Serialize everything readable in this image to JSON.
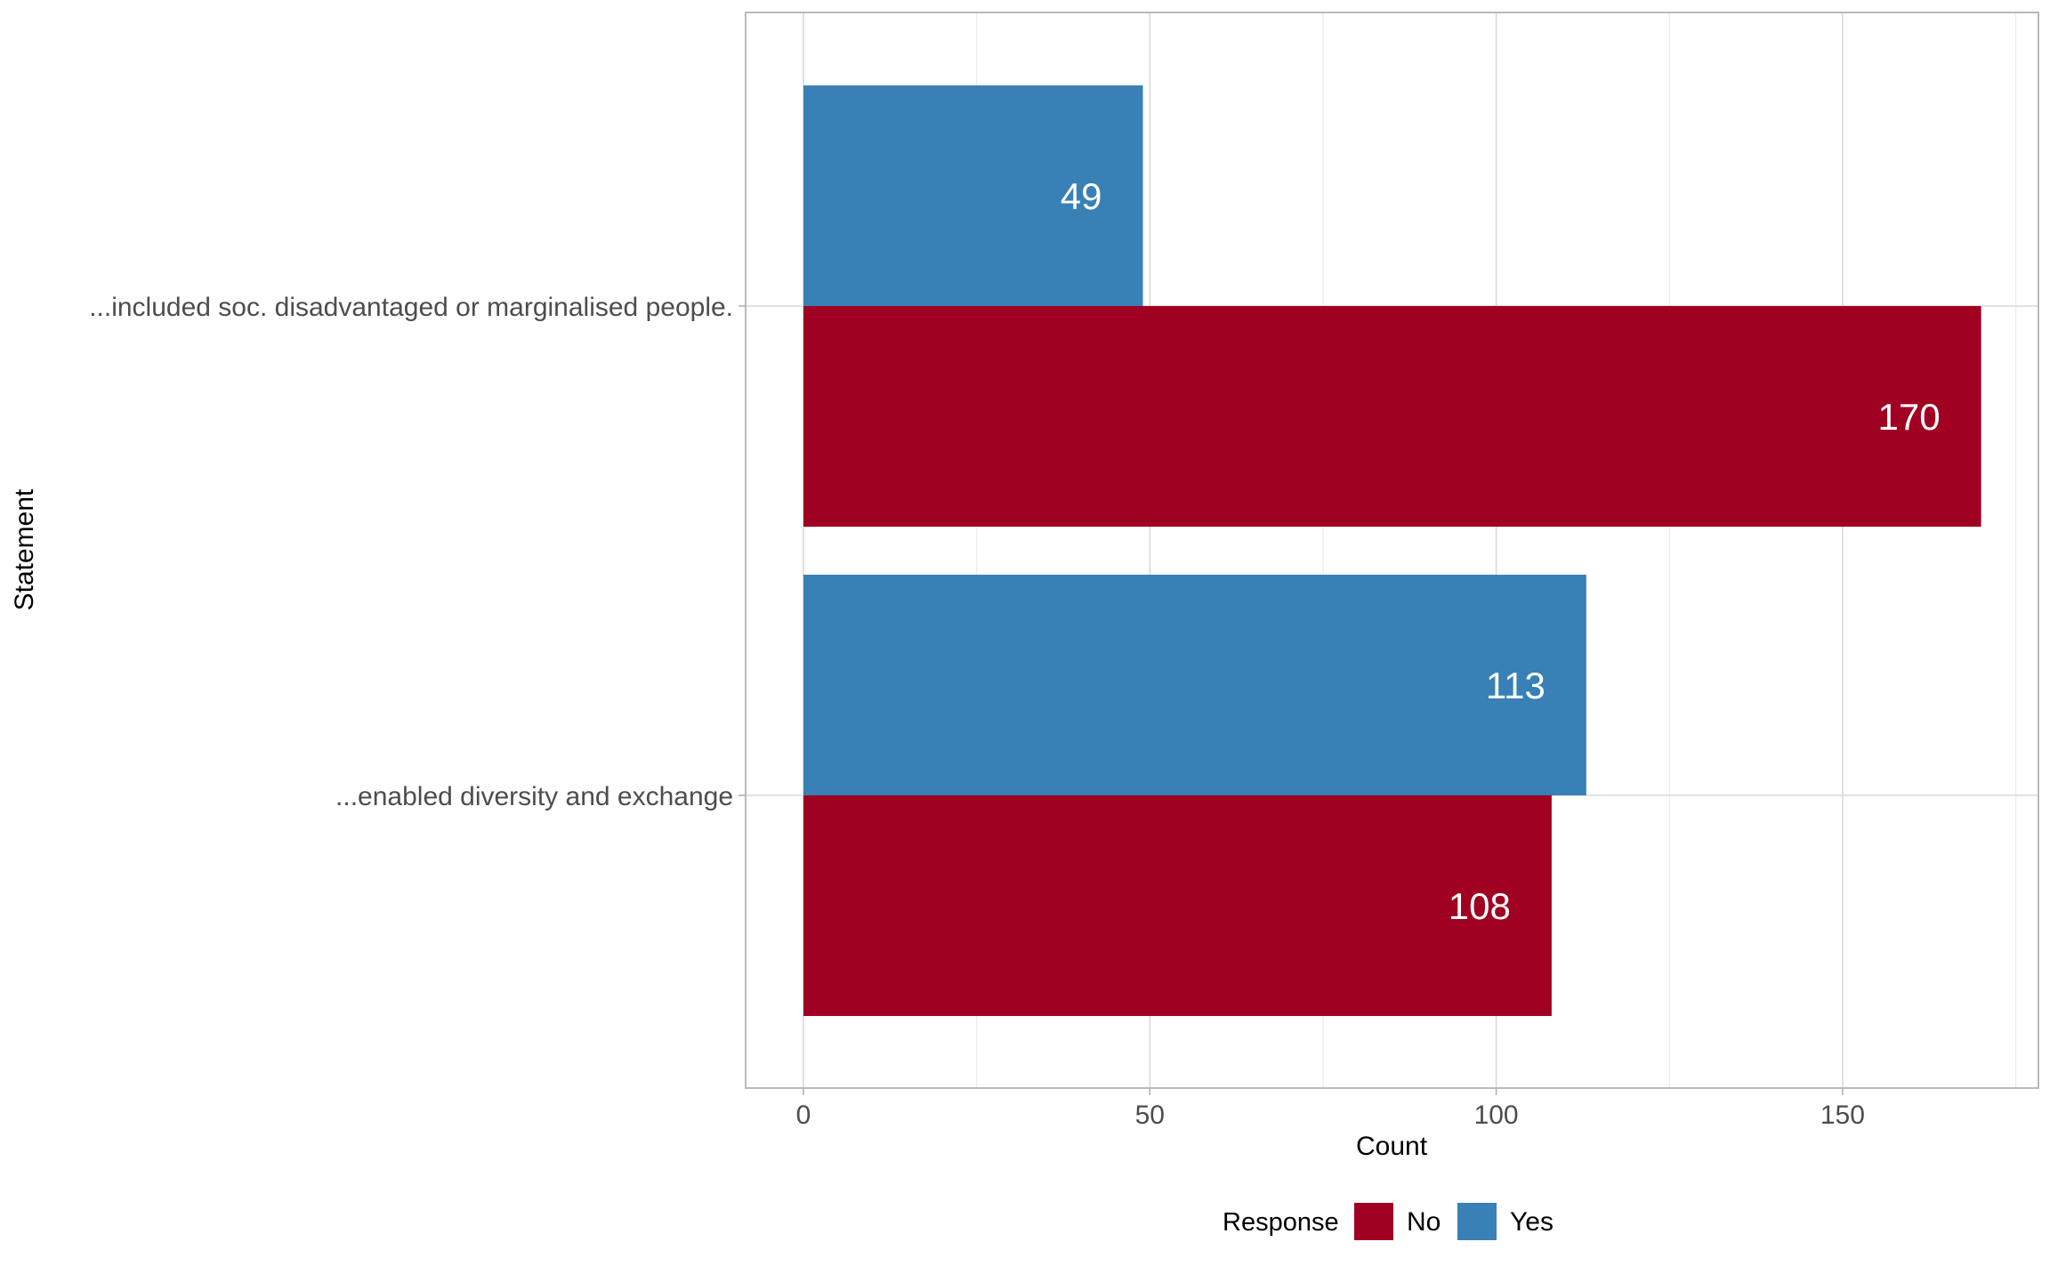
{
  "chart_data": {
    "type": "bar",
    "orientation": "horizontal",
    "title": "",
    "xlabel": "Count",
    "ylabel": "Statement",
    "categories": [
      "...included soc. disadvantaged or marginalised people.",
      "...enabled diversity and exchange"
    ],
    "series": [
      {
        "name": "No",
        "color": "#A00022",
        "values": [
          170,
          108
        ]
      },
      {
        "name": "Yes",
        "color": "#3880B5",
        "values": [
          49,
          113
        ]
      }
    ],
    "xlim": [
      0,
      170
    ],
    "xticks": [
      "0",
      "50",
      "100",
      "150"
    ],
    "xtick_values": [
      0,
      50,
      100,
      150
    ],
    "grid": true,
    "legend": {
      "title": "Response",
      "placement": "bottom",
      "entries": [
        "No",
        "Yes"
      ]
    }
  }
}
